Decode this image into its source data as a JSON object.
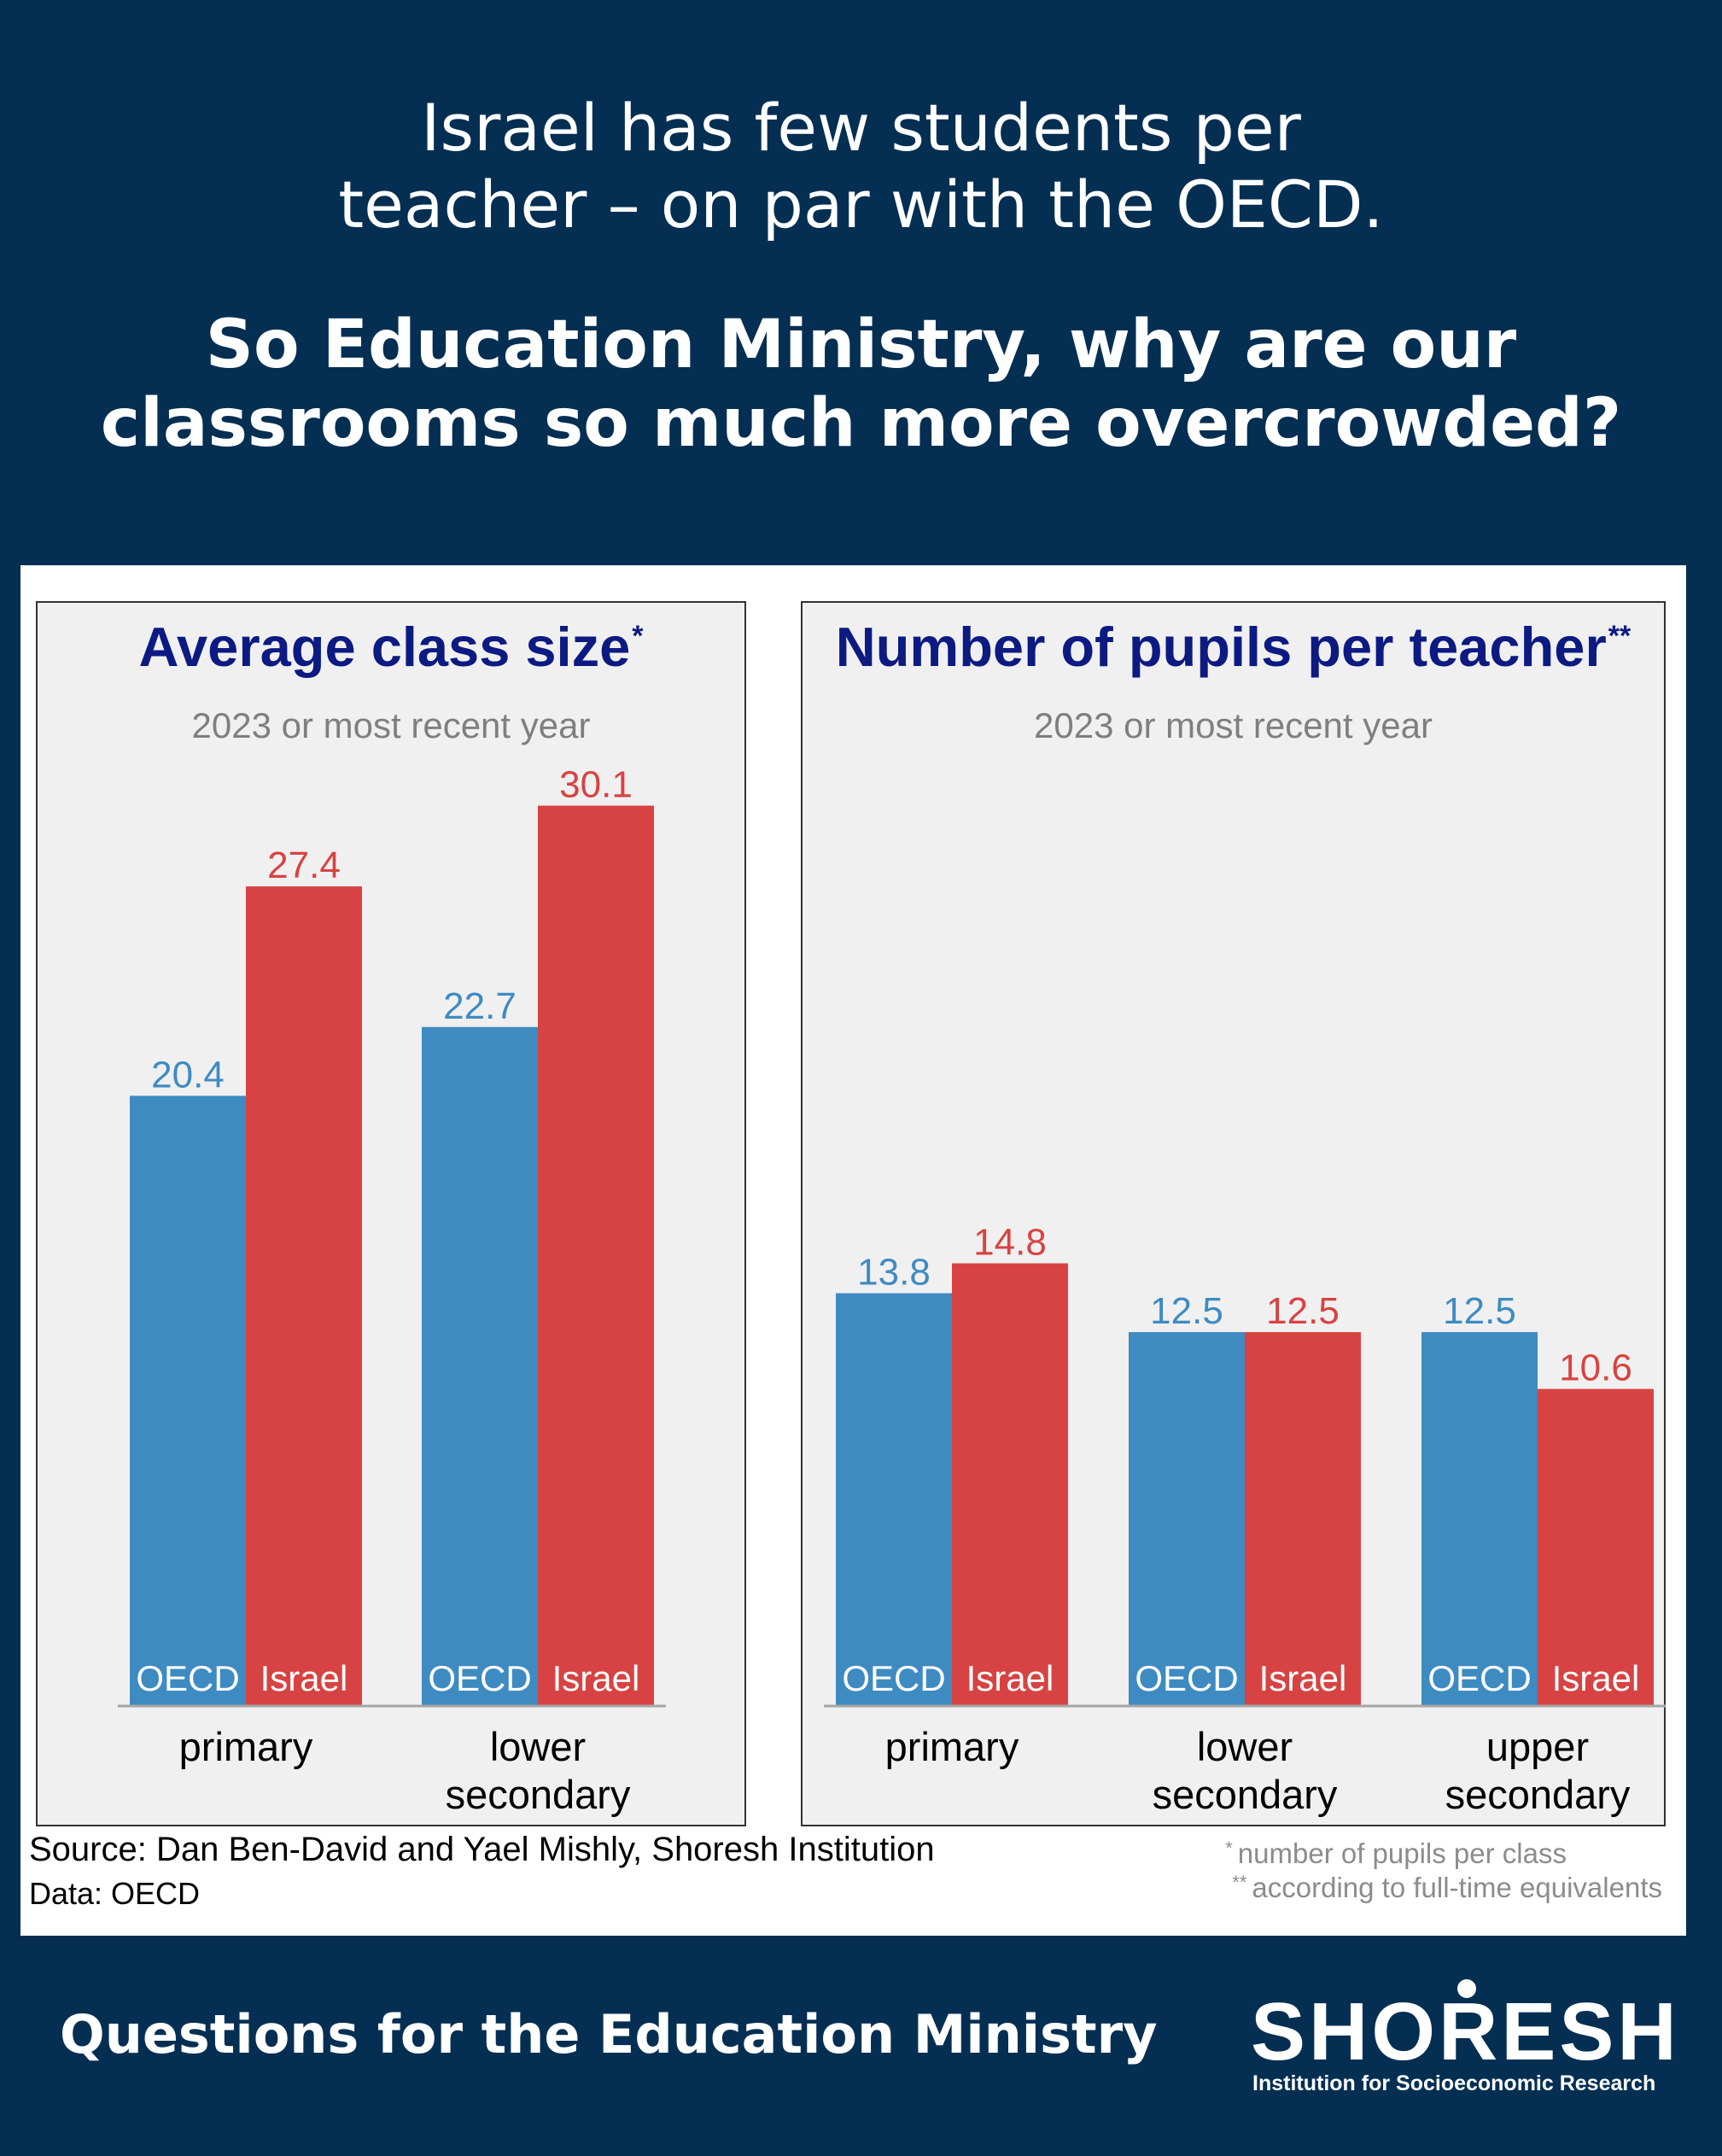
{
  "headline": {
    "line1": "Israel has few students per",
    "line2": "teacher – on par with the OECD.",
    "question1": "So Education Ministry, why are our",
    "question2": "classrooms so much more overcrowded?"
  },
  "colors": {
    "oecd": "#3e8bc2",
    "israel": "#d74342",
    "title": "#0c1a82",
    "background": "#042f52"
  },
  "chart_data": [
    {
      "type": "bar",
      "title": "Average class size",
      "title_mark": "*",
      "subtitle": "2023 or most recent year",
      "categories": [
        [
          "primary"
        ],
        [
          "lower",
          "secondary"
        ]
      ],
      "series": [
        {
          "name": "OECD",
          "values": [
            20.4,
            22.7
          ]
        },
        {
          "name": "Israel",
          "values": [
            27.4,
            30.1
          ]
        }
      ],
      "ylim": [
        0,
        31
      ]
    },
    {
      "type": "bar",
      "title": "Number of pupils per teacher",
      "title_mark": "**",
      "subtitle": "2023 or most recent year",
      "categories": [
        [
          "primary"
        ],
        [
          "lower",
          "secondary"
        ],
        [
          "upper",
          "secondary"
        ]
      ],
      "series": [
        {
          "name": "OECD",
          "values": [
            13.8,
            12.5,
            12.5
          ]
        },
        {
          "name": "Israel",
          "values": [
            14.8,
            12.5,
            10.6
          ]
        }
      ],
      "ylim": [
        0,
        31
      ]
    }
  ],
  "source": "Source: Dan Ben-David and Yael Mishly, Shoresh Institution",
  "data_note": "Data: OECD",
  "footnotes": {
    "mark1": "*",
    "note1": "number of pupils per class",
    "mark2": "**",
    "note2": "according to full-time equivalents"
  },
  "footer": {
    "title": "Questions for the Education Ministry",
    "logo_name": "SHORESH",
    "logo_tagline": "Institution for Socioeconomic Research"
  }
}
